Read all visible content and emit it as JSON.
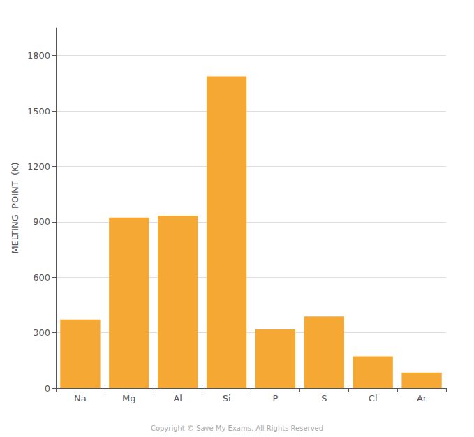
{
  "chart_data": {
    "type": "bar",
    "categories": [
      "Na",
      "Mg",
      "Al",
      "Si",
      "P",
      "S",
      "Cl",
      "Ar"
    ],
    "values": [
      371,
      923,
      933,
      1687,
      317,
      388,
      172,
      84
    ],
    "color": "#F5A833",
    "ylabel": "MELTING  POINT  (K)",
    "ylim": [
      0,
      1950
    ],
    "yticks": [
      0,
      300,
      600,
      900,
      1200,
      1500,
      1800
    ],
    "grid": true,
    "annotations": [
      "Copyright © Save My Exams. All Rights Reserved"
    ]
  }
}
